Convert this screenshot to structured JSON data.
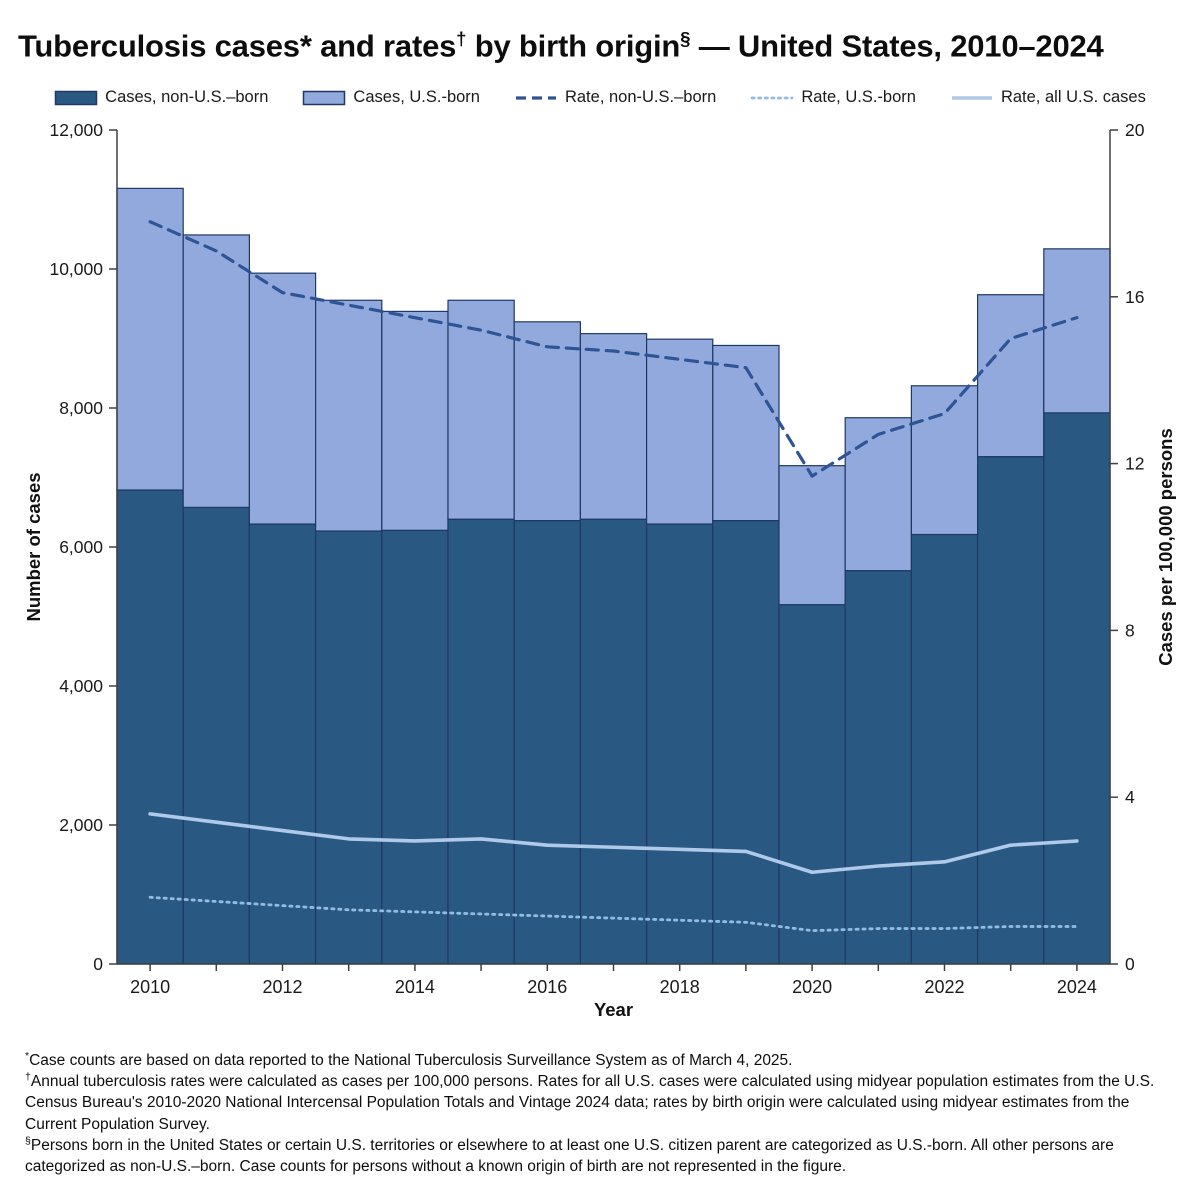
{
  "title": {
    "pre": "Tuberculosis cases* and rates",
    "sup1": "†",
    "mid": " by birth origin",
    "sup2": "§",
    "post": " — United States, 2010–2024"
  },
  "chart_data": {
    "type": "combo-stacked-bar-line",
    "x": [
      2010,
      2011,
      2012,
      2013,
      2014,
      2015,
      2016,
      2017,
      2018,
      2019,
      2020,
      2021,
      2022,
      2023,
      2024
    ],
    "series": [
      {
        "name": "Cases, non-U.S.–born",
        "type": "bar",
        "stack": true,
        "axis": "left",
        "color": "#295883",
        "values": [
          6820,
          6570,
          6330,
          6230,
          6240,
          6400,
          6380,
          6400,
          6330,
          6380,
          5170,
          5660,
          6180,
          7300,
          7930
        ]
      },
      {
        "name": "Cases, U.S.-born",
        "type": "bar",
        "stack": true,
        "axis": "left",
        "color": "#91A9DC",
        "values": [
          4340,
          3920,
          3610,
          3320,
          3150,
          3150,
          2860,
          2670,
          2660,
          2520,
          2000,
          2200,
          2140,
          2330,
          2360
        ]
      },
      {
        "name": "Rate, non-U.S.–born",
        "type": "line",
        "style": "dashed",
        "axis": "right",
        "color": "#2F5496",
        "values": [
          17.8,
          17.1,
          16.1,
          15.8,
          15.5,
          15.2,
          14.8,
          14.7,
          14.5,
          14.3,
          11.7,
          12.7,
          13.2,
          15.0,
          15.5
        ]
      },
      {
        "name": "Rate, U.S.-born",
        "type": "line",
        "style": "dotted",
        "axis": "right",
        "color": "#93BCE2",
        "values": [
          1.6,
          1.5,
          1.4,
          1.3,
          1.25,
          1.2,
          1.15,
          1.1,
          1.05,
          1.0,
          0.8,
          0.85,
          0.85,
          0.9,
          0.9
        ]
      },
      {
        "name": "Rate, all U.S. cases",
        "type": "line",
        "style": "solid",
        "axis": "right",
        "color": "#AFC9E9",
        "values": [
          3.6,
          3.4,
          3.2,
          3.0,
          2.95,
          3.0,
          2.85,
          2.8,
          2.75,
          2.7,
          2.2,
          2.35,
          2.45,
          2.85,
          2.95
        ]
      }
    ],
    "left_axis": {
      "label": "Number of cases",
      "min": 0,
      "max": 12000,
      "step": 2000
    },
    "right_axis": {
      "label": "Cases per 100,000 persons",
      "min": 0,
      "max": 20,
      "step": 4
    },
    "x_axis": {
      "label": "Year",
      "label_every": 2
    },
    "bar_border": "#1F3864",
    "axis_color": "#404040",
    "legend_position": "top",
    "grid": false
  },
  "footnotes": [
    {
      "marker": "*",
      "text": "Case counts are based on data reported to the National Tuberculosis Surveillance System as of March 4, 2025."
    },
    {
      "marker": "†",
      "text": "Annual tuberculosis rates were calculated as cases per 100,000 persons. Rates for all U.S. cases were calculated using midyear population estimates from the U.S. Census Bureau's 2010-2020 National Intercensal Population Totals and Vintage 2024 data; rates by birth origin were calculated using midyear estimates from the Current Population Survey."
    },
    {
      "marker": "§",
      "text": "Persons born in the United States or certain U.S. territories or elsewhere to at least one U.S. citizen parent are categorized as U.S.-born. All other persons are categorized as non-U.S.–born. Case counts for persons without a known origin of birth are not represented in the figure."
    }
  ]
}
